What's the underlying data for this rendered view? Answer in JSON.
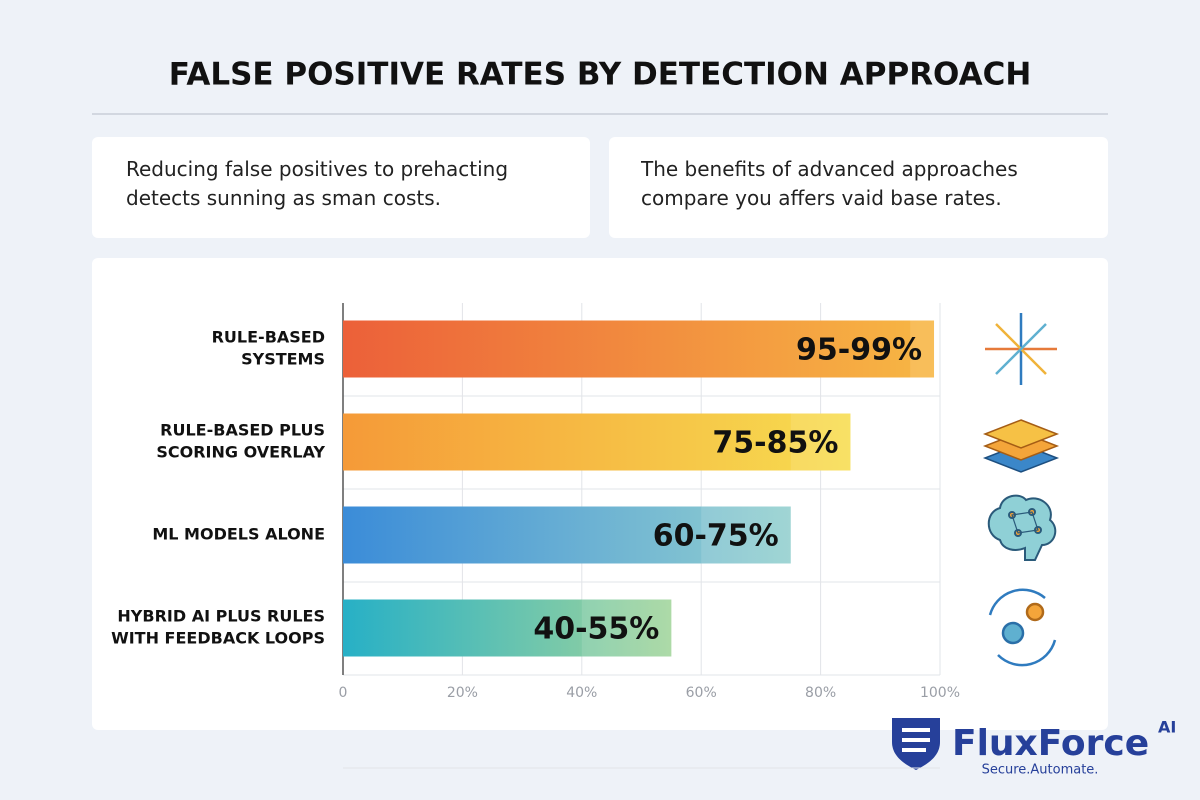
{
  "header": {
    "title": "FALSE POSITIVE RATES BY DETECTION APPROACH"
  },
  "cards": [
    "Reducing false positives to prehacting detects sunning as sman costs.",
    "The benefits of advanced approaches compare you affers vaid base rates."
  ],
  "chart_data": {
    "type": "range-bar",
    "categories": [
      [
        "RULE-BASED",
        "SYSTEMS"
      ],
      [
        "RULE-BASED PLUS",
        "SCORING OVERLAY"
      ],
      [
        "ML MODELS ALONE"
      ],
      [
        "HYBRID AI PLUS RULES",
        "WITH FEEDBACK LOOPS"
      ]
    ],
    "low": [
      95,
      75,
      60,
      40
    ],
    "high": [
      99,
      85,
      75,
      55
    ],
    "value_labels": [
      "95-99%",
      "75-85%",
      "60-75%",
      "40-55%"
    ],
    "colors": [
      [
        "#ec6039",
        "#f7b744"
      ],
      [
        "#f59a38",
        "#f7dd50"
      ],
      [
        "#3b8cd8",
        "#93d0cf"
      ],
      [
        "#27b0c6",
        "#a2d59b"
      ]
    ],
    "xlim": [
      0,
      100
    ],
    "xticks": [
      0,
      {
        "value": 20,
        "label": "20%"
      },
      {
        "value": 40,
        "label": "40%"
      },
      {
        "value": 60,
        "label": "60%"
      },
      {
        "value": 80,
        "label": "80%"
      },
      {
        "value": 100,
        "label": "100%"
      }
    ],
    "grid": true
  },
  "logo": {
    "name": "FluxForce",
    "superscript": "AI",
    "tagline": "Secure.Automate."
  }
}
